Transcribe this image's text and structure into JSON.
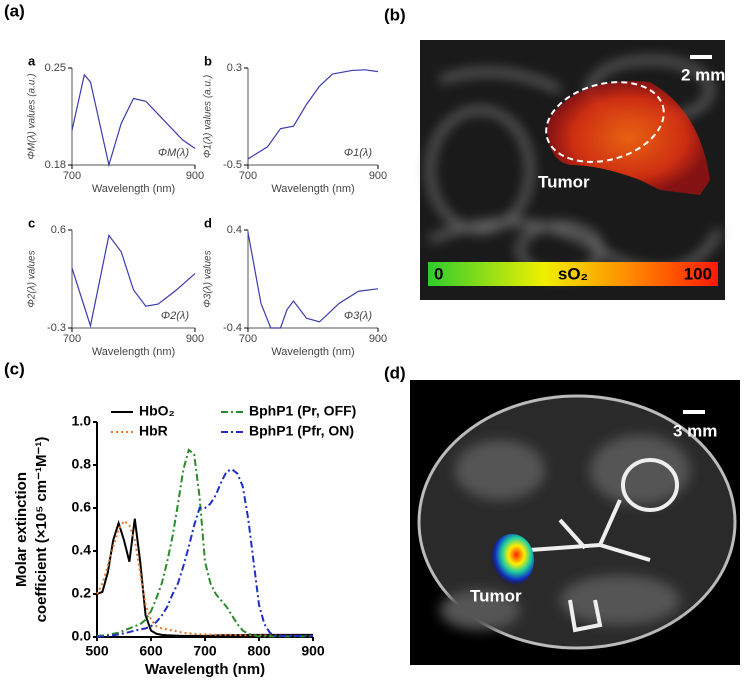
{
  "panel_labels": [
    "(a)",
    "(b)",
    "(c)",
    "(d)"
  ],
  "chart_data": [
    {
      "type": "line",
      "label": "a",
      "ylabel": "ΦM(λ) values (a.u.)",
      "xlabel": "Wavelength (nm)",
      "curve_label": "ΦM(λ)",
      "color": "#3b3bb0",
      "x": [
        700,
        720,
        730,
        760,
        780,
        800,
        820,
        850,
        880,
        900
      ],
      "values": [
        0.205,
        0.245,
        0.24,
        0.18,
        0.21,
        0.228,
        0.226,
        0.212,
        0.198,
        0.192
      ],
      "xlim": [
        700,
        900
      ],
      "xticks": [
        700,
        900
      ],
      "ylim": [
        0.18,
        0.25
      ],
      "yticks": [
        0.18,
        0.25
      ]
    },
    {
      "type": "line",
      "label": "b",
      "ylabel": "Φ1(λ) values (a.u.)",
      "xlabel": "Wavelength (nm)",
      "curve_label": "Φ1(λ)",
      "color": "#3b3bb0",
      "x": [
        700,
        730,
        750,
        770,
        790,
        810,
        830,
        860,
        880,
        900
      ],
      "values": [
        -0.45,
        -0.35,
        -0.2,
        -0.18,
        0.0,
        0.15,
        0.25,
        0.28,
        0.285,
        0.27
      ],
      "xlim": [
        700,
        900
      ],
      "xticks": [
        700,
        900
      ],
      "ylim": [
        -0.5,
        0.3
      ],
      "yticks": [
        -0.5,
        0.3
      ]
    },
    {
      "type": "line",
      "label": "c",
      "ylabel": "Φ2(λ) values",
      "xlabel": "Wavelength (nm)",
      "curve_label": "Φ2(λ)",
      "color": "#3b3bb0",
      "x": [
        700,
        730,
        760,
        780,
        800,
        820,
        840,
        870,
        900
      ],
      "values": [
        0.25,
        -0.28,
        0.55,
        0.4,
        0.05,
        -0.1,
        -0.08,
        0.05,
        0.2
      ],
      "xlim": [
        700,
        900
      ],
      "xticks": [
        700,
        900
      ],
      "ylim": [
        -0.3,
        0.6
      ],
      "yticks": [
        -0.3,
        0.6
      ]
    },
    {
      "type": "line",
      "label": "d",
      "ylabel": "Φ3(λ) values",
      "xlabel": "Wavelength (nm)",
      "curve_label": "Φ3(λ)",
      "color": "#3b3bb0",
      "x": [
        700,
        720,
        735,
        750,
        760,
        770,
        790,
        810,
        840,
        870,
        900
      ],
      "values": [
        0.38,
        -0.2,
        -0.4,
        -0.4,
        -0.25,
        -0.18,
        -0.32,
        -0.35,
        -0.2,
        -0.1,
        -0.08
      ],
      "xlim": [
        700,
        900
      ],
      "xticks": [
        700,
        900
      ],
      "ylim": [
        -0.4,
        0.4
      ],
      "yticks": [
        -0.4,
        0.4
      ]
    },
    {
      "type": "line",
      "ylabel": [
        "Molar extinction",
        "coefficient (×10⁵ cm⁻¹M⁻¹)"
      ],
      "xlabel": "Wavelength (nm)",
      "x": [
        500,
        510,
        520,
        530,
        540,
        550,
        560,
        570,
        580,
        590,
        600,
        610,
        620,
        630,
        640,
        650,
        660,
        670,
        680,
        690,
        700,
        710,
        720,
        730,
        740,
        750,
        760,
        770,
        780,
        790,
        800,
        810,
        820,
        830,
        840,
        850,
        860,
        870,
        880,
        890,
        900
      ],
      "series": [
        {
          "name": "HbO₂",
          "color": "#000000",
          "dash": "solid",
          "values": [
            0.2,
            0.21,
            0.3,
            0.45,
            0.53,
            0.45,
            0.35,
            0.55,
            0.35,
            0.1,
            0.03,
            0.015,
            0.01,
            0.008,
            0.007,
            0.006,
            0.005,
            0.005,
            0.005,
            0.005,
            0.005,
            0.006,
            0.007,
            0.008,
            0.008,
            0.009,
            0.009,
            0.009,
            0.01,
            0.01,
            0.01,
            0.01,
            0.01,
            0.01,
            0.01,
            0.01,
            0.01,
            0.01,
            0.01,
            0.01,
            0.01
          ]
        },
        {
          "name": "HbR",
          "color": "#e8762c",
          "dash": "dotted",
          "values": [
            0.2,
            0.25,
            0.33,
            0.42,
            0.5,
            0.54,
            0.52,
            0.45,
            0.3,
            0.15,
            0.08,
            0.05,
            0.04,
            0.035,
            0.03,
            0.025,
            0.02,
            0.017,
            0.015,
            0.013,
            0.012,
            0.011,
            0.01,
            0.01,
            0.01,
            0.01,
            0.009,
            0.009,
            0.008,
            0.008,
            0.008,
            0.007,
            0.007,
            0.007,
            0.006,
            0.006,
            0.006,
            0.005,
            0.005,
            0.005,
            0.005
          ]
        },
        {
          "name": "BphP1 (Pr, OFF)",
          "color": "#2b8a2b",
          "dash": "dashdot",
          "values": [
            0.005,
            0.007,
            0.01,
            0.015,
            0.02,
            0.03,
            0.04,
            0.05,
            0.06,
            0.08,
            0.12,
            0.18,
            0.25,
            0.35,
            0.47,
            0.62,
            0.78,
            0.87,
            0.85,
            0.65,
            0.35,
            0.25,
            0.2,
            0.17,
            0.14,
            0.1,
            0.06,
            0.03,
            0.015,
            0.008,
            0.003,
            0.003,
            0.003,
            0.003,
            0.003,
            0.003,
            0.003,
            0.003,
            0.003,
            0.003,
            0.003
          ]
        },
        {
          "name": "BphP1 (Pfr, ON)",
          "color": "#1f2fc4",
          "dash": "dashdot",
          "values": [
            0.002,
            0.003,
            0.005,
            0.008,
            0.012,
            0.017,
            0.023,
            0.03,
            0.035,
            0.04,
            0.05,
            0.07,
            0.1,
            0.14,
            0.2,
            0.25,
            0.33,
            0.42,
            0.52,
            0.6,
            0.6,
            0.62,
            0.66,
            0.72,
            0.77,
            0.78,
            0.76,
            0.7,
            0.55,
            0.35,
            0.15,
            0.06,
            0.02,
            0.005,
            0.005,
            0.005,
            0.005,
            0.005,
            0.005,
            0.005,
            0.005
          ]
        }
      ],
      "xlim": [
        500,
        900
      ],
      "xticks": [
        500,
        600,
        700,
        800,
        900
      ],
      "ylim": [
        0,
        1
      ],
      "yticks": [
        {
          "value": 0,
          "label": "0.0"
        },
        0.2,
        0.4,
        0.6,
        0.8,
        {
          "value": 1,
          "label": "1.0"
        }
      ]
    }
  ],
  "panel_b": {
    "scale": "2 mm",
    "tumor": "Tumor",
    "colorbar_min": "0",
    "colorbar_label": "sO₂",
    "colorbar_max": "100"
  },
  "panel_d": {
    "scale": "3 mm",
    "tumor": "Tumor"
  }
}
